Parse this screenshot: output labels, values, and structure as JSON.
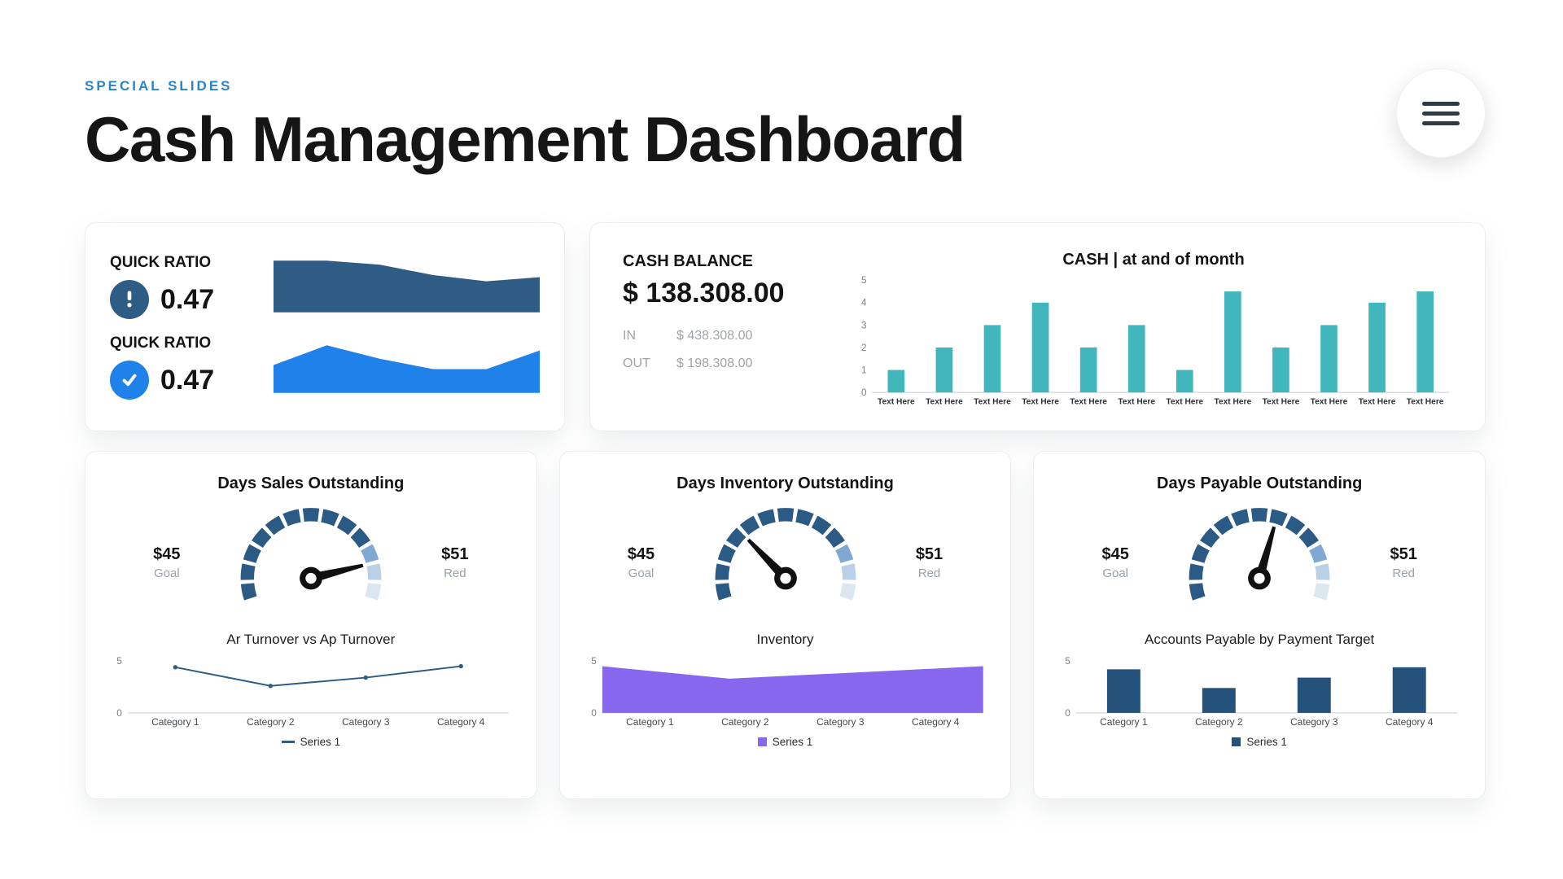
{
  "header": {
    "eyebrow": "SPECIAL SLIDES",
    "title": "Cash Management Dashboard"
  },
  "colors": {
    "accent": "#2b83c9",
    "badge_navy": "#2d5c85",
    "badge_blue": "#1e82ea"
  },
  "quick_ratio": {
    "rows": [
      {
        "label": "QUICK RATIO",
        "value": "0.47",
        "icon": "alert-icon"
      },
      {
        "label": "QUICK RATIO",
        "value": "0.47",
        "icon": "check-icon"
      }
    ]
  },
  "cash_balance": {
    "label": "CASH BALANCE",
    "value": "$ 138.308.00",
    "rows": [
      {
        "label": "IN",
        "value": "$ 438.308.00"
      },
      {
        "label": "OUT",
        "value": "$ 198.308.00"
      }
    ]
  },
  "gauge_cards": [
    {
      "title": "Days Sales Outstanding",
      "goal_value": "$45",
      "goal_label": "Goal",
      "red_value": "$51",
      "red_label": "Red"
    },
    {
      "title": "Days Inventory Outstanding",
      "goal_value": "$45",
      "goal_label": "Goal",
      "red_value": "$51",
      "red_label": "Red"
    },
    {
      "title": "Days Payable Outstanding",
      "goal_value": "$45",
      "goal_label": "Goal",
      "red_value": "$51",
      "red_label": "Red"
    }
  ],
  "chart_data": [
    {
      "type": "area",
      "values": [
        5,
        5,
        4.6,
        3.6,
        3.0,
        3.4
      ],
      "ylim": [
        0,
        5
      ],
      "color": "#2e5c84"
    },
    {
      "type": "area",
      "values": [
        2.7,
        4.6,
        3.3,
        2.3,
        2.3,
        4.1
      ],
      "ylim": [
        0,
        5
      ],
      "color": "#1e82ea"
    },
    {
      "type": "bar",
      "title": "CASH | at and of month",
      "values": [
        1,
        2,
        3,
        4,
        2,
        3,
        1,
        4.5,
        2,
        3,
        4,
        4.5
      ],
      "categories": [
        "Text Here",
        "Text Here",
        "Text Here",
        "Text Here",
        "Text Here",
        "Text Here",
        "Text Here",
        "Text Here",
        "Text Here",
        "Text Here",
        "Text Here",
        "Text Here"
      ],
      "ylim": [
        0,
        5
      ],
      "yticks": [
        0,
        1,
        2,
        3,
        4,
        5
      ],
      "color": "#41b6bd",
      "bar_ratio": 0.35,
      "xlabel_bold": true
    },
    {
      "type": "gauge",
      "needle_deg": 76,
      "start_deg": -110,
      "end_deg": 110,
      "segment_colors": [
        "#2b5a84",
        "#2b5a84",
        "#2b5a84",
        "#2b5a84",
        "#2b5a84",
        "#2b5a84",
        "#2b5a84",
        "#2b5a84",
        "#2b5a84",
        "#2b5a84",
        "#7fa9d2",
        "#b9d0e6",
        "#dbe6f1"
      ]
    },
    {
      "type": "line",
      "title": "Ar Turnover vs Ap Turnover",
      "values": [
        4.4,
        2.6,
        3.4,
        4.5
      ],
      "categories": [
        "Category 1",
        "Category 2",
        "Category 3",
        "Category 4"
      ],
      "ylim": [
        0,
        5
      ],
      "yticks": [
        0,
        5
      ],
      "color": "#2e5c84",
      "legend": "Series 1"
    },
    {
      "type": "gauge",
      "needle_deg": -44,
      "start_deg": -110,
      "end_deg": 110,
      "segment_colors": [
        "#2b5a84",
        "#2b5a84",
        "#2b5a84",
        "#2b5a84",
        "#2b5a84",
        "#2b5a84",
        "#2b5a84",
        "#2b5a84",
        "#2b5a84",
        "#2b5a84",
        "#7fa9d2",
        "#b9d0e6",
        "#dbe6f1"
      ]
    },
    {
      "type": "area",
      "title": "Inventory",
      "values": [
        4.5,
        3.3,
        3.9,
        4.5
      ],
      "categories": [
        "Category 1",
        "Category 2",
        "Category 3",
        "Category 4"
      ],
      "ylim": [
        0,
        5
      ],
      "yticks": [
        0,
        5
      ],
      "color": "#8767ee",
      "legend": "Series 1"
    },
    {
      "type": "gauge",
      "needle_deg": 16,
      "start_deg": -110,
      "end_deg": 110,
      "segment_colors": [
        "#2b5a84",
        "#2b5a84",
        "#2b5a84",
        "#2b5a84",
        "#2b5a84",
        "#2b5a84",
        "#2b5a84",
        "#2b5a84",
        "#2b5a84",
        "#2b5a84",
        "#7fa9d2",
        "#b9d0e6",
        "#dbe6f1"
      ]
    },
    {
      "type": "bar",
      "title": "Accounts Payable by Payment Target",
      "values": [
        4.2,
        2.4,
        3.4,
        4.4
      ],
      "categories": [
        "Category 1",
        "Category 2",
        "Category 3",
        "Category 4"
      ],
      "ylim": [
        0,
        5
      ],
      "yticks": [
        0,
        5
      ],
      "color": "#24527b",
      "bar_ratio": 0.35,
      "legend": "Series 1"
    }
  ]
}
